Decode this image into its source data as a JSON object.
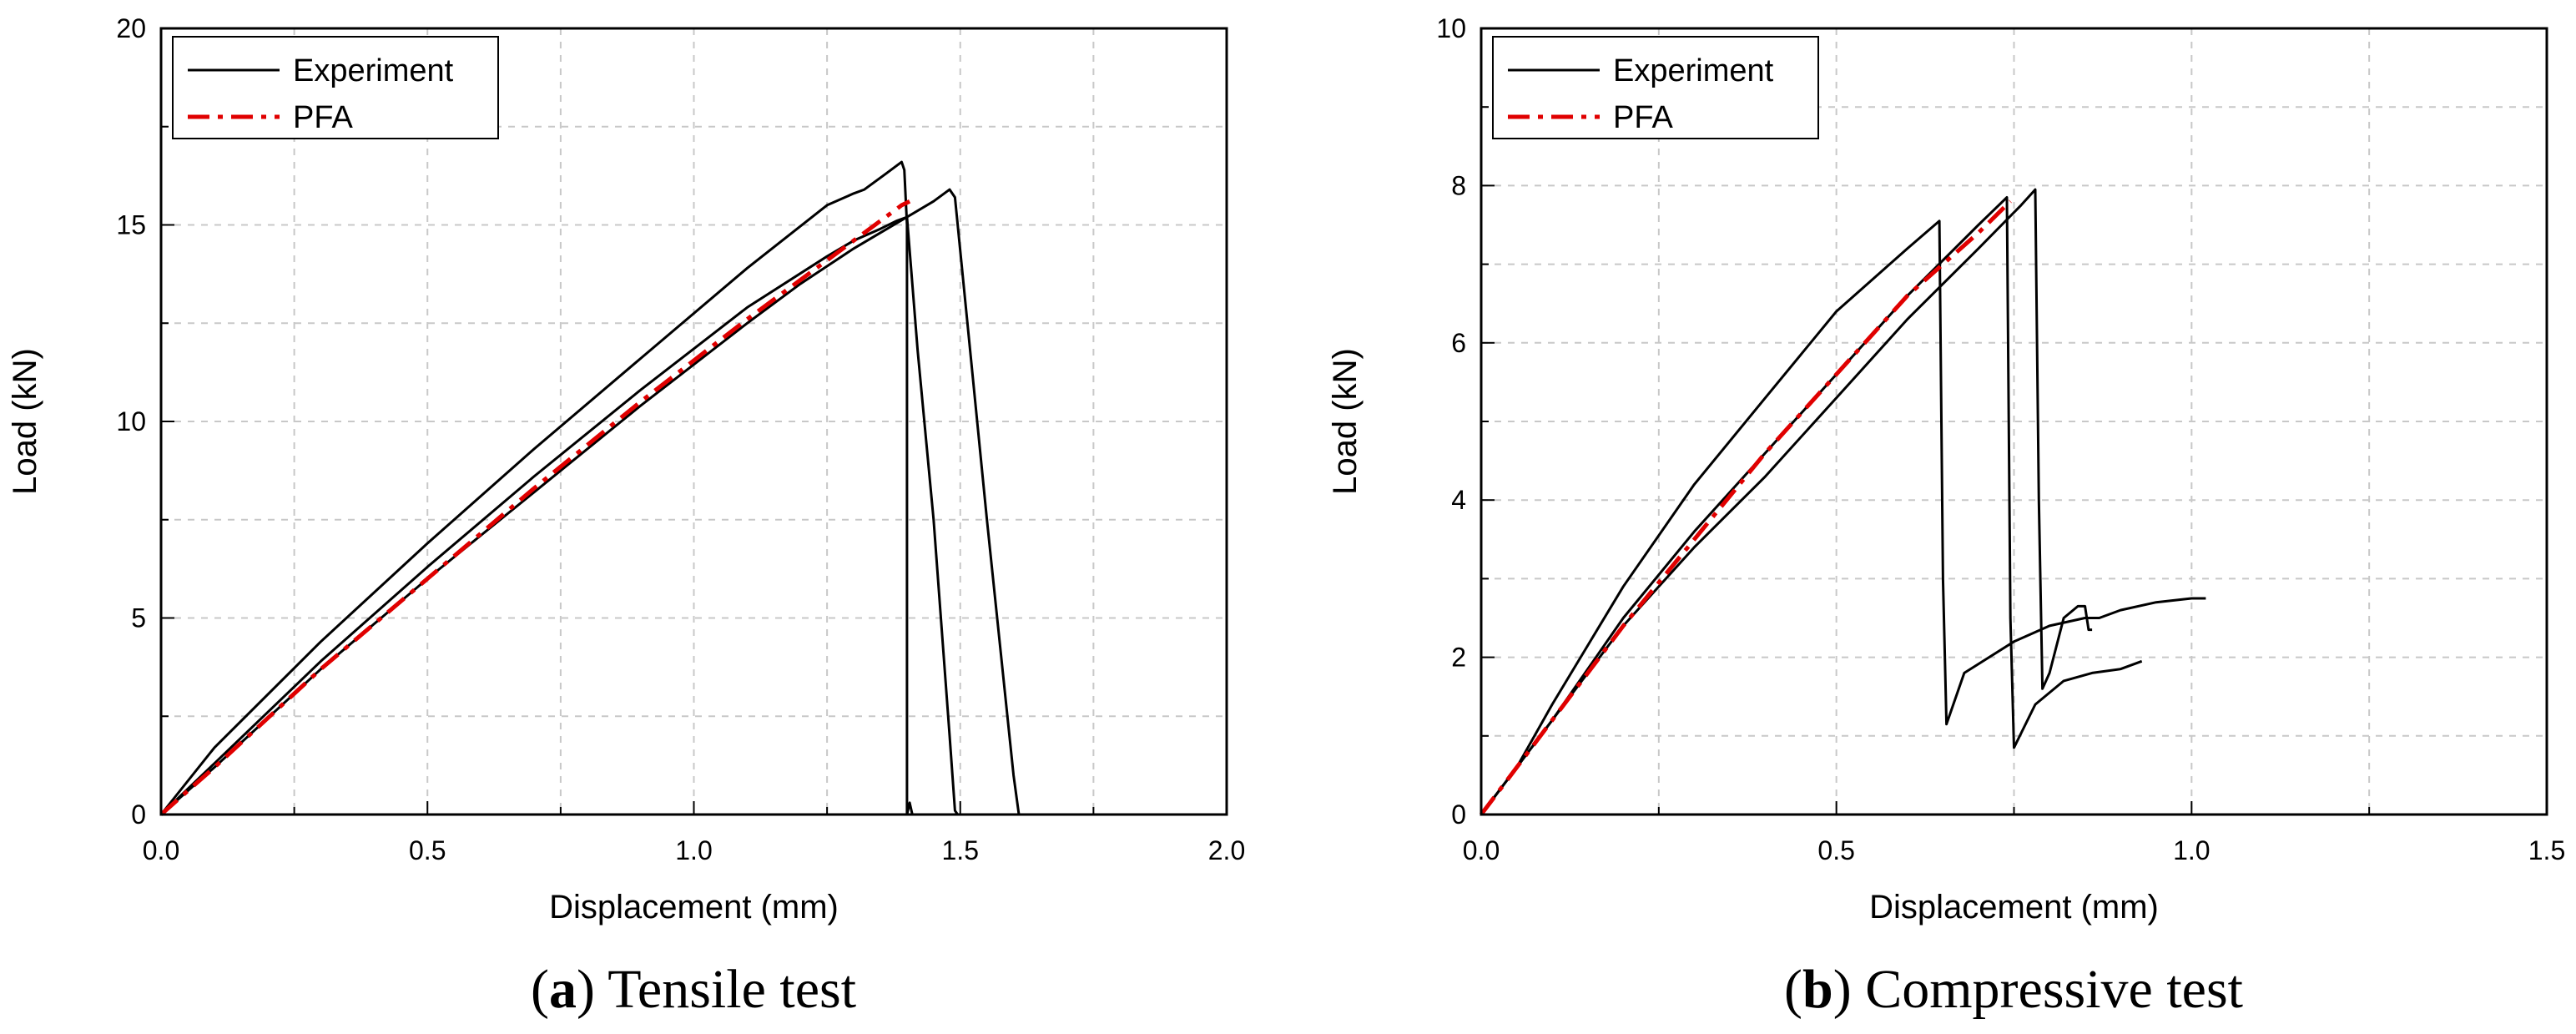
{
  "chart_data": [
    {
      "type": "line",
      "panel": "a",
      "caption": {
        "label": "a",
        "text": ") Tensile test",
        "open": "("
      },
      "xlabel": "Displacement (mm)",
      "ylabel": "Load (kN)",
      "xlim": [
        0,
        2.0
      ],
      "ylim": [
        0,
        20
      ],
      "xticks": [
        "0.0",
        "0.5",
        "1.0",
        "1.5",
        "2.0"
      ],
      "yticks": [
        "0",
        "5",
        "10",
        "15",
        "20"
      ],
      "grid": true,
      "legend": {
        "placement": "top-left",
        "entries": [
          "Experiment",
          "PFA"
        ]
      },
      "series": [
        {
          "name": "Experiment",
          "style": "solid",
          "color": "#000000",
          "x": [
            0.0,
            0.1,
            0.3,
            0.5,
            0.7,
            0.9,
            1.1,
            1.25,
            1.3,
            1.32,
            1.36,
            1.39,
            1.395,
            1.4,
            1.4,
            1.405,
            1.41
          ],
          "y": [
            0.0,
            1.7,
            4.4,
            6.9,
            9.3,
            11.6,
            13.9,
            15.5,
            15.8,
            15.9,
            16.3,
            16.6,
            16.4,
            15.0,
            0.0,
            0.3,
            0.0
          ]
        },
        {
          "name": "Experiment",
          "style": "solid",
          "color": "#000000",
          "x": [
            0.0,
            0.1,
            0.3,
            0.5,
            0.7,
            0.9,
            1.1,
            1.25,
            1.3,
            1.35,
            1.38,
            1.4,
            1.42,
            1.45,
            1.48,
            1.49,
            1.495
          ],
          "y": [
            0.0,
            1.3,
            3.9,
            6.3,
            8.6,
            10.8,
            12.9,
            14.2,
            14.6,
            14.9,
            15.1,
            15.2,
            11.8,
            7.5,
            2.0,
            0.1,
            0.0
          ]
        },
        {
          "name": "Experiment",
          "style": "solid",
          "color": "#000000",
          "x": [
            0.0,
            0.1,
            0.3,
            0.5,
            0.7,
            0.9,
            1.1,
            1.2,
            1.3,
            1.35,
            1.4,
            1.45,
            1.48,
            1.49,
            1.55,
            1.6,
            1.61
          ],
          "y": [
            0.0,
            1.2,
            3.7,
            6.0,
            8.2,
            10.4,
            12.5,
            13.5,
            14.4,
            14.8,
            15.2,
            15.6,
            15.9,
            15.7,
            7.5,
            1.0,
            0.0
          ]
        },
        {
          "name": "PFA",
          "style": "dashdot",
          "color": "#e00000",
          "x": [
            0.0,
            0.1,
            0.3,
            0.5,
            0.7,
            0.9,
            1.1,
            1.3,
            1.39,
            1.405
          ],
          "y": [
            0.0,
            1.2,
            3.7,
            6.0,
            8.3,
            10.5,
            12.6,
            14.6,
            15.5,
            15.6
          ]
        }
      ]
    },
    {
      "type": "line",
      "panel": "b",
      "caption": {
        "label": "b",
        "text": ") Compressive test",
        "open": "("
      },
      "xlabel": "Displacement (mm)",
      "ylabel": "Load (kN)",
      "xlim": [
        0,
        1.5
      ],
      "ylim": [
        0,
        10
      ],
      "xticks": [
        "0.0",
        "0.5",
        "1.0",
        "1.5"
      ],
      "yticks": [
        "0",
        "2",
        "4",
        "6",
        "8",
        "10"
      ],
      "grid": true,
      "legend": {
        "placement": "top-left",
        "entries": [
          "Experiment",
          "PFA"
        ]
      },
      "series": [
        {
          "name": "Experiment",
          "style": "solid",
          "color": "#000000",
          "x": [
            0.0,
            0.05,
            0.1,
            0.2,
            0.3,
            0.4,
            0.5,
            0.6,
            0.645,
            0.65,
            0.655,
            0.68,
            0.75,
            0.8,
            0.85,
            0.87,
            0.9,
            0.95,
            1.0,
            1.02
          ],
          "y": [
            0.0,
            0.6,
            1.4,
            2.9,
            4.2,
            5.3,
            6.4,
            7.2,
            7.55,
            3.0,
            1.15,
            1.8,
            2.2,
            2.4,
            2.5,
            2.5,
            2.6,
            2.7,
            2.75,
            2.75
          ]
        },
        {
          "name": "Experiment",
          "style": "solid",
          "color": "#000000",
          "x": [
            0.0,
            0.05,
            0.1,
            0.2,
            0.3,
            0.4,
            0.5,
            0.6,
            0.7,
            0.74,
            0.745,
            0.75,
            0.78,
            0.82,
            0.86,
            0.9,
            0.93
          ],
          "y": [
            0.0,
            0.6,
            1.2,
            2.5,
            3.6,
            4.6,
            5.6,
            6.6,
            7.5,
            7.85,
            2.5,
            0.85,
            1.4,
            1.7,
            1.8,
            1.85,
            1.95
          ]
        },
        {
          "name": "Experiment",
          "style": "solid",
          "color": "#000000",
          "x": [
            0.0,
            0.05,
            0.1,
            0.2,
            0.3,
            0.4,
            0.5,
            0.6,
            0.7,
            0.76,
            0.78,
            0.785,
            0.79,
            0.8,
            0.82,
            0.84,
            0.85,
            0.855,
            0.86
          ],
          "y": [
            0.0,
            0.6,
            1.2,
            2.4,
            3.4,
            4.3,
            5.3,
            6.3,
            7.2,
            7.75,
            7.95,
            4.0,
            1.6,
            1.8,
            2.5,
            2.65,
            2.65,
            2.35,
            2.35
          ]
        },
        {
          "name": "PFA",
          "style": "dashdot",
          "color": "#e00000",
          "x": [
            0.0,
            0.05,
            0.1,
            0.2,
            0.3,
            0.4,
            0.5,
            0.6,
            0.7,
            0.745
          ],
          "y": [
            0.0,
            0.6,
            1.2,
            2.4,
            3.5,
            4.6,
            5.6,
            6.6,
            7.4,
            7.8
          ]
        }
      ]
    }
  ]
}
